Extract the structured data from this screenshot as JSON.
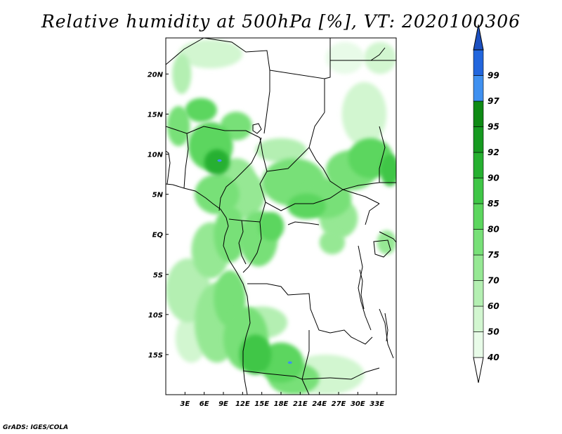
{
  "title": "Relative humidity at 500hPa [%], VT: 2020100306",
  "credit": "GrADS: IGES/COLA",
  "map": {
    "lon_range": [
      0,
      36
    ],
    "lat_range": [
      -20,
      24.5
    ],
    "lat_ticks": [
      {
        "lat": 20,
        "label": "20N"
      },
      {
        "lat": 15,
        "label": "15N"
      },
      {
        "lat": 10,
        "label": "10N"
      },
      {
        "lat": 5,
        "label": "5N"
      },
      {
        "lat": 0,
        "label": "EQ"
      },
      {
        "lat": -5,
        "label": "5S"
      },
      {
        "lat": -10,
        "label": "10S"
      },
      {
        "lat": -15,
        "label": "15S"
      }
    ],
    "lon_ticks": [
      {
        "lon": 3,
        "label": "3E"
      },
      {
        "lon": 6,
        "label": "6E"
      },
      {
        "lon": 9,
        "label": "9E"
      },
      {
        "lon": 12,
        "label": "12E"
      },
      {
        "lon": 15,
        "label": "15E"
      },
      {
        "lon": 18,
        "label": "18E"
      },
      {
        "lon": 21,
        "label": "21E"
      },
      {
        "lon": 24,
        "label": "24E"
      },
      {
        "lon": 27,
        "label": "27E"
      },
      {
        "lon": 30,
        "label": "30E"
      },
      {
        "lon": 33,
        "label": "33E"
      }
    ]
  },
  "colorbar": {
    "levels": [
      {
        "label": "40",
        "color": "#e8fbe8"
      },
      {
        "label": "50",
        "color": "#d2f6d0"
      },
      {
        "label": "60",
        "color": "#b4efb2"
      },
      {
        "label": "70",
        "color": "#96e894"
      },
      {
        "label": "75",
        "color": "#78e078"
      },
      {
        "label": "80",
        "color": "#5cd65e"
      },
      {
        "label": "85",
        "color": "#3fc646"
      },
      {
        "label": "90",
        "color": "#26b030"
      },
      {
        "label": "92",
        "color": "#169a20"
      },
      {
        "label": "95",
        "color": "#0e8a14"
      },
      {
        "label": "97",
        "color": "#3f90f0"
      },
      {
        "label": "99",
        "color": "#2266dd"
      }
    ],
    "top_color": "#1c50c0"
  },
  "humidity_blobs": [
    {
      "lon": 2.5,
      "lat": 20,
      "rx": 1.5,
      "ry": 2.5,
      "level": 2
    },
    {
      "lon": 2,
      "lat": 13.5,
      "rx": 1.8,
      "ry": 2.5,
      "level": 4
    },
    {
      "lon": 5.5,
      "lat": 15.5,
      "rx": 2.5,
      "ry": 1.5,
      "level": 5
    },
    {
      "lon": 7,
      "lat": 11,
      "rx": 3.5,
      "ry": 3,
      "level": 5
    },
    {
      "lon": 8,
      "lat": 9,
      "rx": 2,
      "ry": 1.6,
      "level": 7
    },
    {
      "lon": 11,
      "lat": 13.5,
      "rx": 2.5,
      "ry": 1.8,
      "level": 4
    },
    {
      "lon": 8,
      "lat": 5,
      "rx": 3.5,
      "ry": 2.5,
      "level": 4
    },
    {
      "lon": 11,
      "lat": 7,
      "rx": 3,
      "ry": 2.5,
      "level": 3
    },
    {
      "lon": 12,
      "lat": 5,
      "rx": 3.5,
      "ry": 3,
      "level": 3
    },
    {
      "lon": 10,
      "lat": 0,
      "rx": 2.5,
      "ry": 3.5,
      "level": 4
    },
    {
      "lon": 14.5,
      "lat": -0.5,
      "rx": 3,
      "ry": 3.5,
      "level": 4
    },
    {
      "lon": 16.5,
      "lat": 1,
      "rx": 2,
      "ry": 1.8,
      "level": 5
    },
    {
      "lon": 7,
      "lat": -2,
      "rx": 3,
      "ry": 3.5,
      "level": 3
    },
    {
      "lon": 3.5,
      "lat": -7,
      "rx": 3.5,
      "ry": 4,
      "level": 2
    },
    {
      "lon": 8,
      "lat": -11,
      "rx": 3.5,
      "ry": 5,
      "level": 3
    },
    {
      "lon": 10,
      "lat": -8,
      "rx": 2.5,
      "ry": 3.5,
      "level": 4
    },
    {
      "lon": 12.5,
      "lat": -13,
      "rx": 3.5,
      "ry": 4,
      "level": 4
    },
    {
      "lon": 14,
      "lat": -15,
      "rx": 2.5,
      "ry": 2.5,
      "level": 6
    },
    {
      "lon": 18,
      "lat": -16,
      "rx": 3.5,
      "ry": 2.5,
      "level": 5
    },
    {
      "lon": 20,
      "lat": -18,
      "rx": 4,
      "ry": 2,
      "level": 4
    },
    {
      "lon": 15,
      "lat": -11,
      "rx": 4,
      "ry": 2,
      "level": 2
    },
    {
      "lon": 4,
      "lat": -13,
      "rx": 2.5,
      "ry": 3,
      "level": 1
    },
    {
      "lon": 25,
      "lat": -17.5,
      "rx": 6,
      "ry": 2.5,
      "level": 1
    },
    {
      "lon": 20,
      "lat": 6.5,
      "rx": 5,
      "ry": 3,
      "level": 4
    },
    {
      "lon": 25,
      "lat": 4.5,
      "rx": 4,
      "ry": 2.5,
      "level": 4
    },
    {
      "lon": 22,
      "lat": 3.5,
      "rx": 3,
      "ry": 1.6,
      "level": 5
    },
    {
      "lon": 27,
      "lat": 2,
      "rx": 3,
      "ry": 2.5,
      "level": 3
    },
    {
      "lon": 29,
      "lat": 8,
      "rx": 4,
      "ry": 2.5,
      "level": 4
    },
    {
      "lon": 32,
      "lat": 9.5,
      "rx": 3.5,
      "ry": 2.5,
      "level": 5
    },
    {
      "lon": 35,
      "lat": 8,
      "rx": 1.5,
      "ry": 2,
      "level": 6
    },
    {
      "lon": 18,
      "lat": 10.5,
      "rx": 4,
      "ry": 1.5,
      "level": 2
    },
    {
      "lon": 31,
      "lat": 15,
      "rx": 3.5,
      "ry": 4,
      "level": 1
    },
    {
      "lon": 33.5,
      "lat": 22,
      "rx": 2.5,
      "ry": 2,
      "level": 1
    },
    {
      "lon": 26,
      "lat": -1,
      "rx": 2,
      "ry": 1.5,
      "level": 3
    },
    {
      "lon": 34.5,
      "lat": -1,
      "rx": 1.5,
      "ry": 1.5,
      "level": 3
    },
    {
      "lon": 7,
      "lat": 22.5,
      "rx": 5,
      "ry": 1.8,
      "level": 1
    },
    {
      "lon": 28,
      "lat": 22,
      "rx": 3,
      "ry": 2,
      "level": 0
    }
  ],
  "blue_spots": [
    {
      "lon": 8.4,
      "lat": 9.2
    },
    {
      "lon": 19.4,
      "lat": -16.0
    }
  ]
}
